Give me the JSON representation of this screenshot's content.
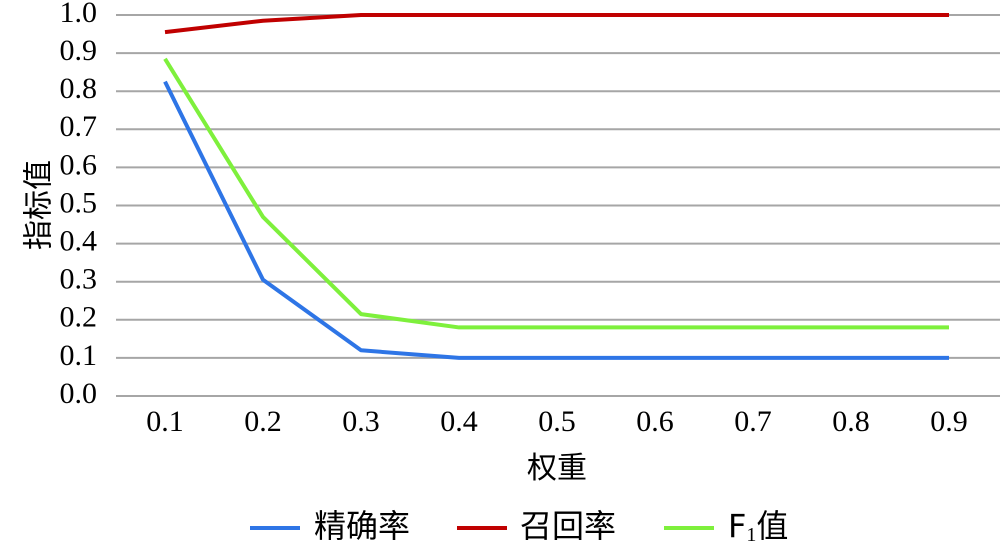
{
  "chart_data": {
    "type": "line",
    "title": "",
    "xlabel": "权重",
    "ylabel": "指标值",
    "categories": [
      "0.1",
      "0.2",
      "0.3",
      "0.4",
      "0.5",
      "0.6",
      "0.7",
      "0.8",
      "0.9"
    ],
    "ylim": [
      0.0,
      1.0
    ],
    "y_ticks": [
      "0.0",
      "0.1",
      "0.2",
      "0.3",
      "0.4",
      "0.5",
      "0.6",
      "0.7",
      "0.8",
      "0.9",
      "1.0"
    ],
    "grid": true,
    "legend_position": "bottom",
    "series": [
      {
        "name": "精确率",
        "color": "#2e75e6",
        "values": [
          0.825,
          0.305,
          0.12,
          0.1,
          0.1,
          0.1,
          0.1,
          0.1,
          0.1
        ]
      },
      {
        "name": "召回率",
        "color": "#c00000",
        "values": [
          0.955,
          0.985,
          1.0,
          1.0,
          1.0,
          1.0,
          1.0,
          1.0,
          1.0
        ]
      },
      {
        "name": "F",
        "name_subscript": "1",
        "name_suffix": "值",
        "color": "#7ef03c",
        "values": [
          0.885,
          0.47,
          0.215,
          0.18,
          0.18,
          0.18,
          0.18,
          0.18,
          0.18
        ]
      }
    ]
  }
}
